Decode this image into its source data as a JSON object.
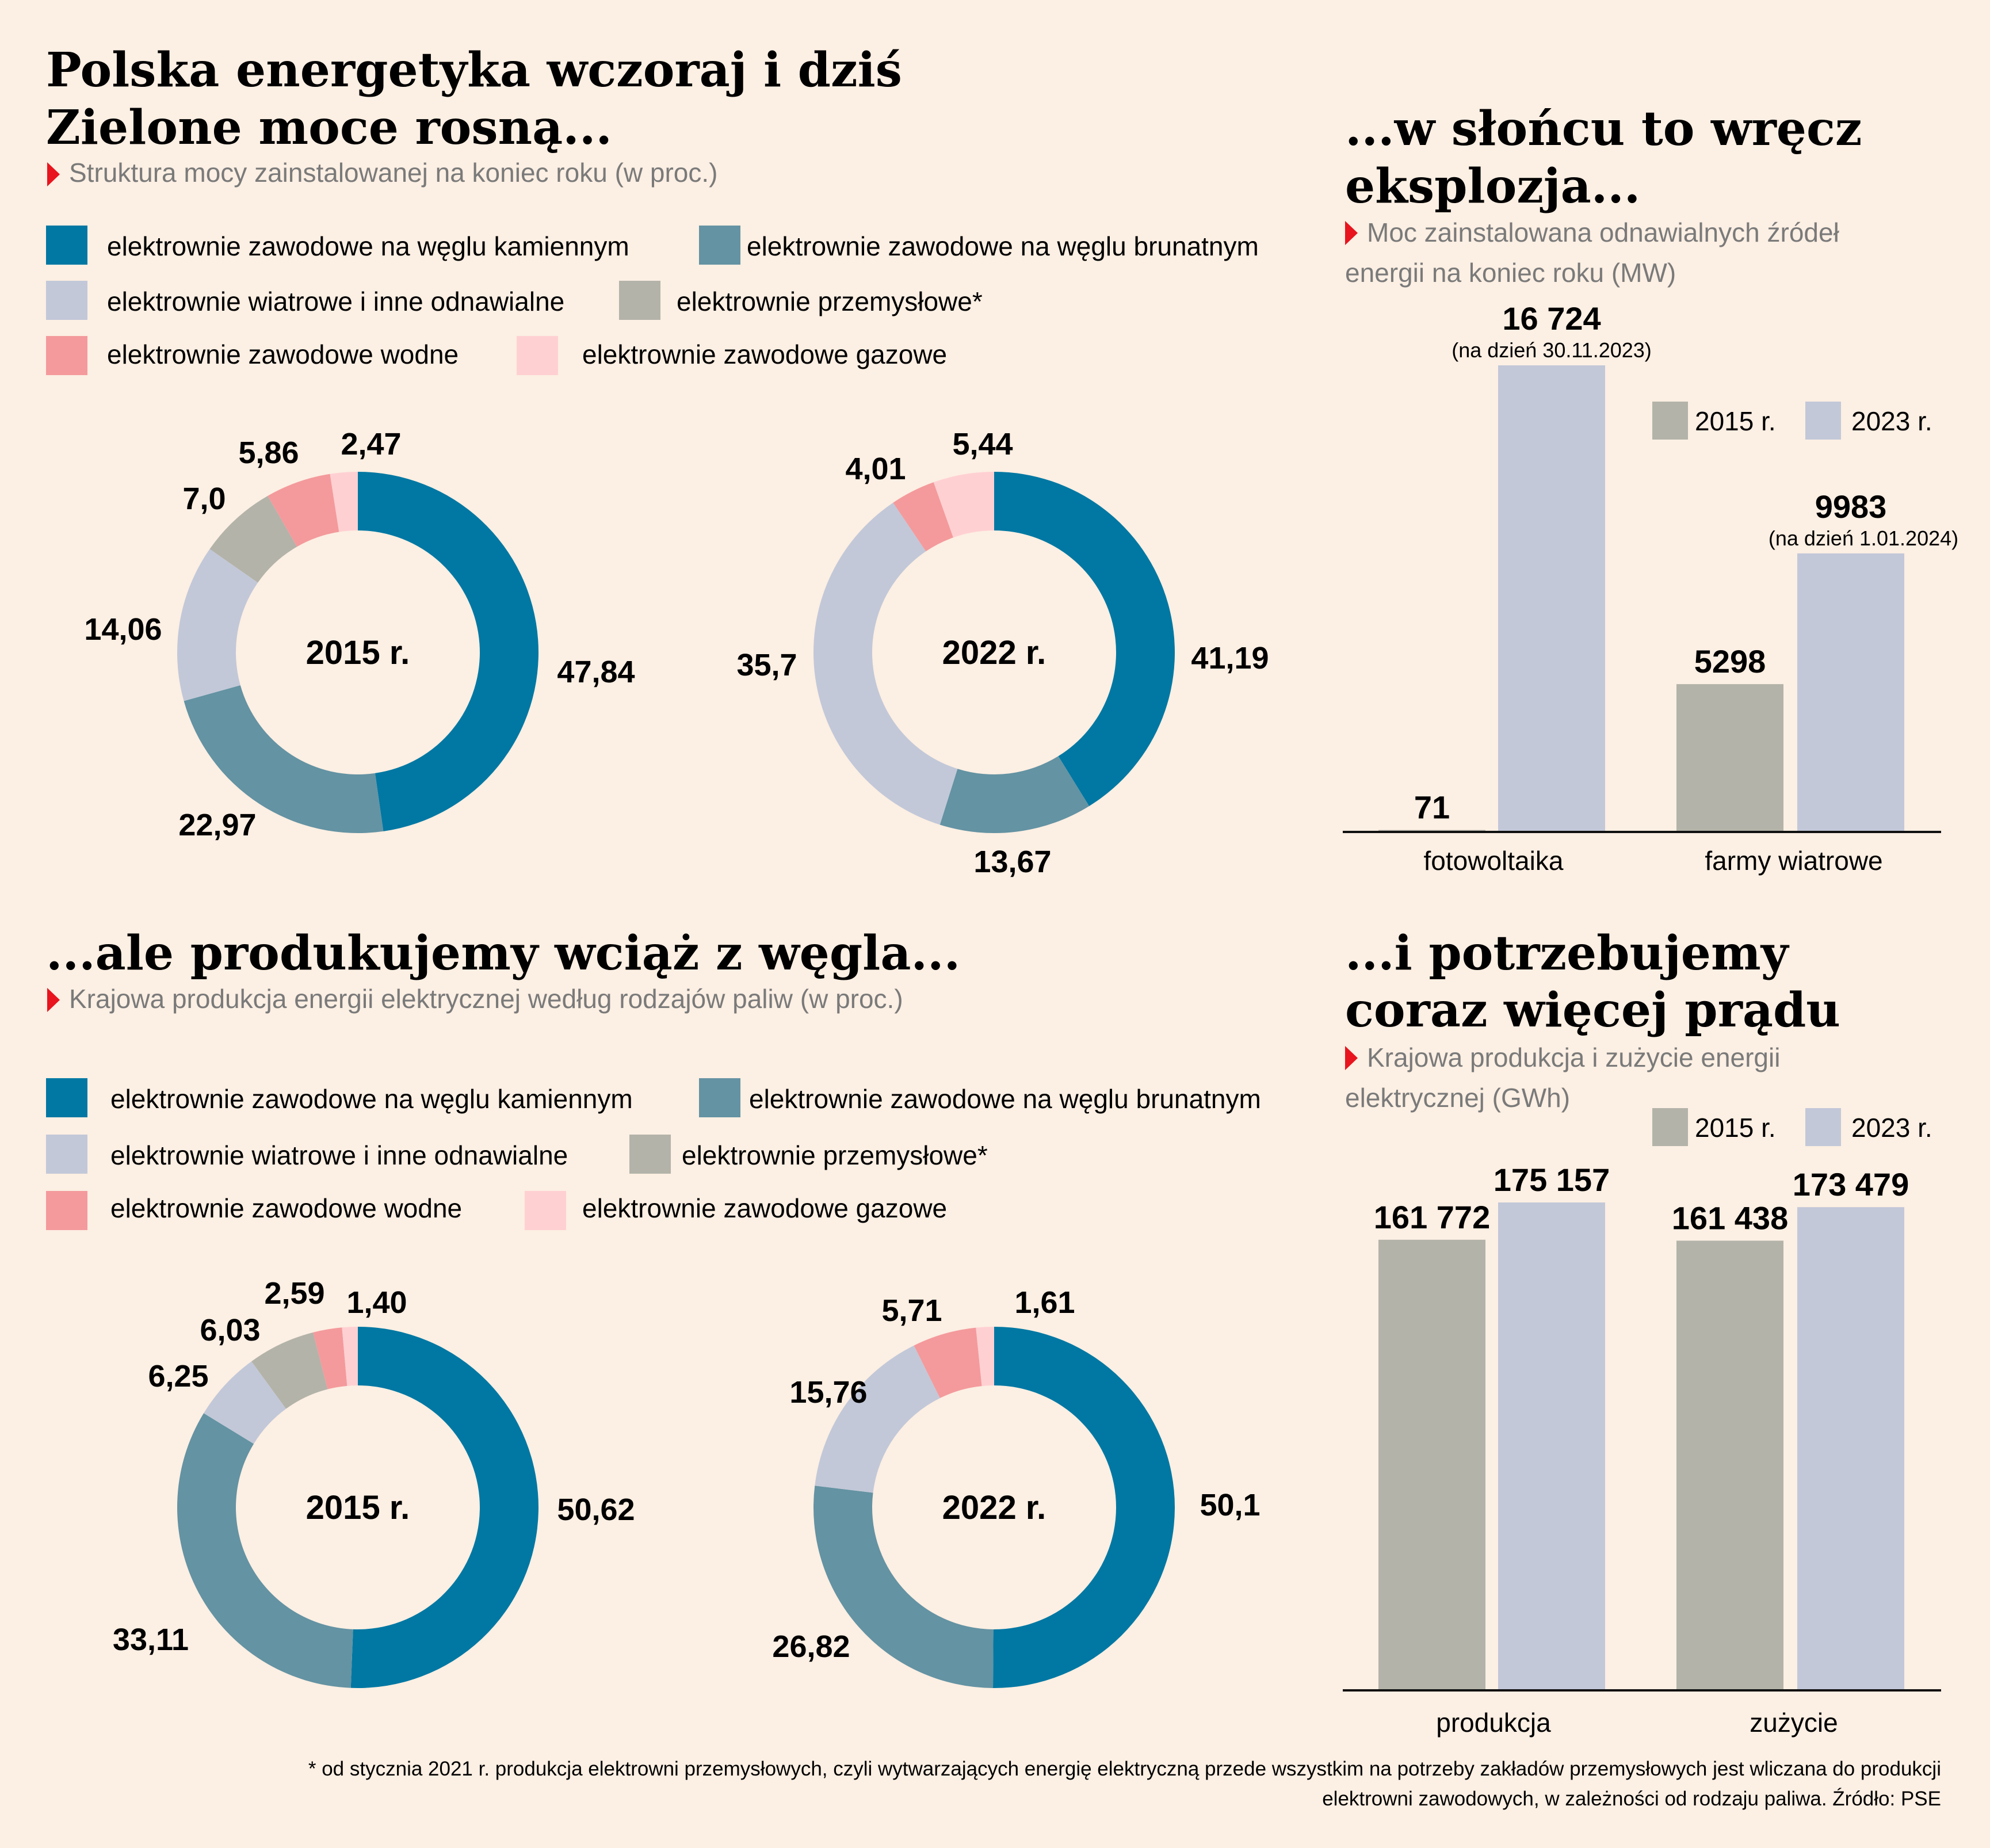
{
  "colors": {
    "background": "#FCEFE3",
    "coal": "#0078A3",
    "lignite": "#6493A3",
    "wind_renewable": "#C2C8D8",
    "industrial": "#B3B3A9",
    "hydro": "#F49A9C",
    "gas": "#FFD0D2",
    "bar_2015": "#B3B3A9",
    "bar_2023": "#C2C8D8",
    "marker": "#E8141E"
  },
  "header": {
    "title_line1": "Polska energetyka wczoraj i dziś",
    "title_line2": "Zielone moce rosną...",
    "subtitle": "Struktura mocy zainstalowanej na koniec roku (w proc.)"
  },
  "section2": {
    "title": "...ale produkujemy wciąż z węgla...",
    "subtitle": "Krajowa produkcja energii elektrycznej według rodzajów paliw (w proc.)"
  },
  "section3": {
    "title_line1": "...w słońcu to wręcz",
    "title_line2": "eksplozja...",
    "subtitle_line1": "Moc zainstalowana odnawialnych źródeł",
    "subtitle_line2": "energii na koniec roku (MW)"
  },
  "section4": {
    "title_line1": "...i potrzebujemy",
    "title_line2": "coraz więcej prądu",
    "subtitle_line1": "Krajowa produkcja i zużycie energii",
    "subtitle_line2": "elektrycznej (GWh)"
  },
  "legend_items": [
    "elektrownie zawodowe na węglu kamiennym",
    "elektrownie zawodowe na węglu brunatnym",
    "elektrownie wiatrowe i inne odnawialne",
    "elektrownie przemysłowe*",
    "elektrownie zawodowe wodne",
    "elektrownie zawodowe gazowe"
  ],
  "bar_legend": [
    "2015 r.",
    "2023 r."
  ],
  "footnote_line1": "* od stycznia 2021 r. produkcja elektrowni przemysłowych, czyli wytwarzających energię elektryczną przede wszystkim na potrzeby zakładów przemysłowych jest wliczana do produkcji",
  "footnote_line2": "elektrowni zawodowych, w zależności od rodzaju paliwa. Źródło: PSE",
  "chart_data": [
    {
      "type": "pie",
      "donut": true,
      "center_label": "2015 r.",
      "categories": [
        "elektrownie zawodowe na węglu kamiennym",
        "elektrownie zawodowe na węglu brunatnym",
        "elektrownie wiatrowe i inne odnawialne",
        "elektrownie przemysłowe*",
        "elektrownie zawodowe wodne",
        "elektrownie zawodowe gazowe"
      ],
      "values": [
        47.84,
        22.97,
        14.06,
        7.0,
        5.86,
        2.47
      ],
      "labels": [
        "47,84",
        "22,97",
        "14,06",
        "7,0",
        "5,86",
        "2,47"
      ]
    },
    {
      "type": "pie",
      "donut": true,
      "center_label": "2022 r.",
      "categories": [
        "elektrownie zawodowe na węglu kamiennym",
        "elektrownie zawodowe na węglu brunatnym",
        "elektrownie wiatrowe i inne odnawialne",
        "elektrownie przemysłowe*",
        "elektrownie zawodowe wodne",
        "elektrownie zawodowe gazowe"
      ],
      "values": [
        41.19,
        13.67,
        35.7,
        0,
        4.01,
        5.44
      ],
      "labels": [
        "41,19",
        "13,67",
        "35,7",
        "",
        "4,01",
        "5,44"
      ]
    },
    {
      "type": "pie",
      "donut": true,
      "center_label": "2015 r.",
      "categories": [
        "elektrownie zawodowe na węglu kamiennym",
        "elektrownie zawodowe na węglu brunatnym",
        "elektrownie wiatrowe i inne odnawialne",
        "elektrownie przemysłowe*",
        "elektrownie zawodowe wodne",
        "elektrownie zawodowe gazowe"
      ],
      "values": [
        50.62,
        33.11,
        6.25,
        6.03,
        2.59,
        1.4
      ],
      "labels": [
        "50,62",
        "33,11",
        "6,25",
        "6,03",
        "2,59",
        "1,40"
      ]
    },
    {
      "type": "pie",
      "donut": true,
      "center_label": "2022 r.",
      "categories": [
        "elektrownie zawodowe na węglu kamiennym",
        "elektrownie zawodowe na węglu brunatnym",
        "elektrownie wiatrowe i inne odnawialne",
        "elektrownie przemysłowe*",
        "elektrownie zawodowe wodne",
        "elektrownie zawodowe gazowe"
      ],
      "values": [
        50.1,
        26.82,
        15.76,
        0,
        5.71,
        1.61
      ],
      "labels": [
        "50,1",
        "26,82",
        "15,76",
        "",
        "5,71",
        "1,61"
      ]
    },
    {
      "type": "bar",
      "categories": [
        "fotowoltaika",
        "farmy wiatrowe"
      ],
      "series": [
        {
          "name": "2015 r.",
          "values": [
            71,
            5298
          ],
          "labels": [
            "71",
            "5298"
          ]
        },
        {
          "name": "2023 r.",
          "values": [
            16724,
            9983
          ],
          "labels": [
            "16 724",
            "9983"
          ],
          "notes": [
            "(na dzień 30.11.2023)",
            "(na dzień 1.01.2024)"
          ]
        }
      ],
      "ylim": [
        0,
        16724
      ]
    },
    {
      "type": "bar",
      "categories": [
        "produkcja",
        "zużycie"
      ],
      "series": [
        {
          "name": "2015 r.",
          "values": [
            161772,
            161438
          ],
          "labels": [
            "161 772",
            "161 438"
          ]
        },
        {
          "name": "2023 r.",
          "values": [
            175157,
            173479
          ],
          "labels": [
            "175 157",
            "173 479"
          ]
        }
      ],
      "ylim": [
        0,
        175157
      ]
    }
  ]
}
